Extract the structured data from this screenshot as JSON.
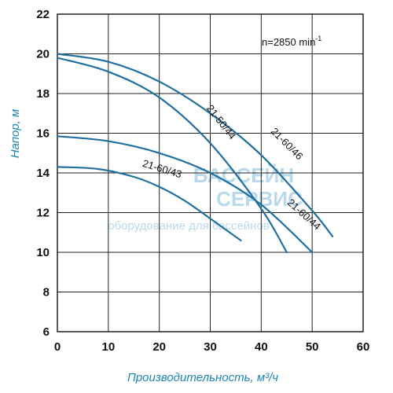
{
  "chart_data": {
    "type": "line",
    "xlabel": "Производительность, м³/ч",
    "ylabel": "Напор, м",
    "xlim": [
      0,
      60
    ],
    "ylim": [
      6,
      22
    ],
    "x_ticks": [
      "0",
      "10",
      "20",
      "30",
      "40",
      "50",
      "60"
    ],
    "y_ticks": [
      "6",
      "8",
      "10",
      "12",
      "14",
      "16",
      "18",
      "20",
      "22"
    ],
    "grid": true,
    "speed_note": {
      "base": "n=2850 min",
      "sup": "-1"
    },
    "colors": {
      "curve": "#1f6fa0",
      "axis_title": "#1b86b8",
      "grid": "#222222",
      "watermark": "#b9d9ec"
    },
    "watermark": {
      "line1": "БАССЕЙН",
      "line2": "СЕРВИС",
      "line3": "оборудование для бассейнов"
    },
    "series": [
      {
        "name": "21-60/46",
        "x": [
          0,
          10,
          20,
          30,
          40,
          50,
          54
        ],
        "y": [
          20.0,
          19.6,
          18.6,
          17.0,
          14.9,
          12.1,
          10.8
        ]
      },
      {
        "name": "21-50/44",
        "x": [
          0,
          10,
          20,
          30,
          40,
          45
        ],
        "y": [
          19.8,
          19.1,
          17.8,
          15.5,
          12.2,
          10.0
        ]
      },
      {
        "name": "21-60/44",
        "x": [
          0,
          10,
          20,
          30,
          40,
          50
        ],
        "y": [
          15.85,
          15.6,
          15.0,
          14.0,
          12.4,
          10.0
        ]
      },
      {
        "name": "21-60/43",
        "x": [
          0,
          8,
          15,
          20,
          25,
          30,
          36
        ],
        "y": [
          14.3,
          14.2,
          13.8,
          13.3,
          12.6,
          11.7,
          10.6
        ]
      }
    ]
  }
}
